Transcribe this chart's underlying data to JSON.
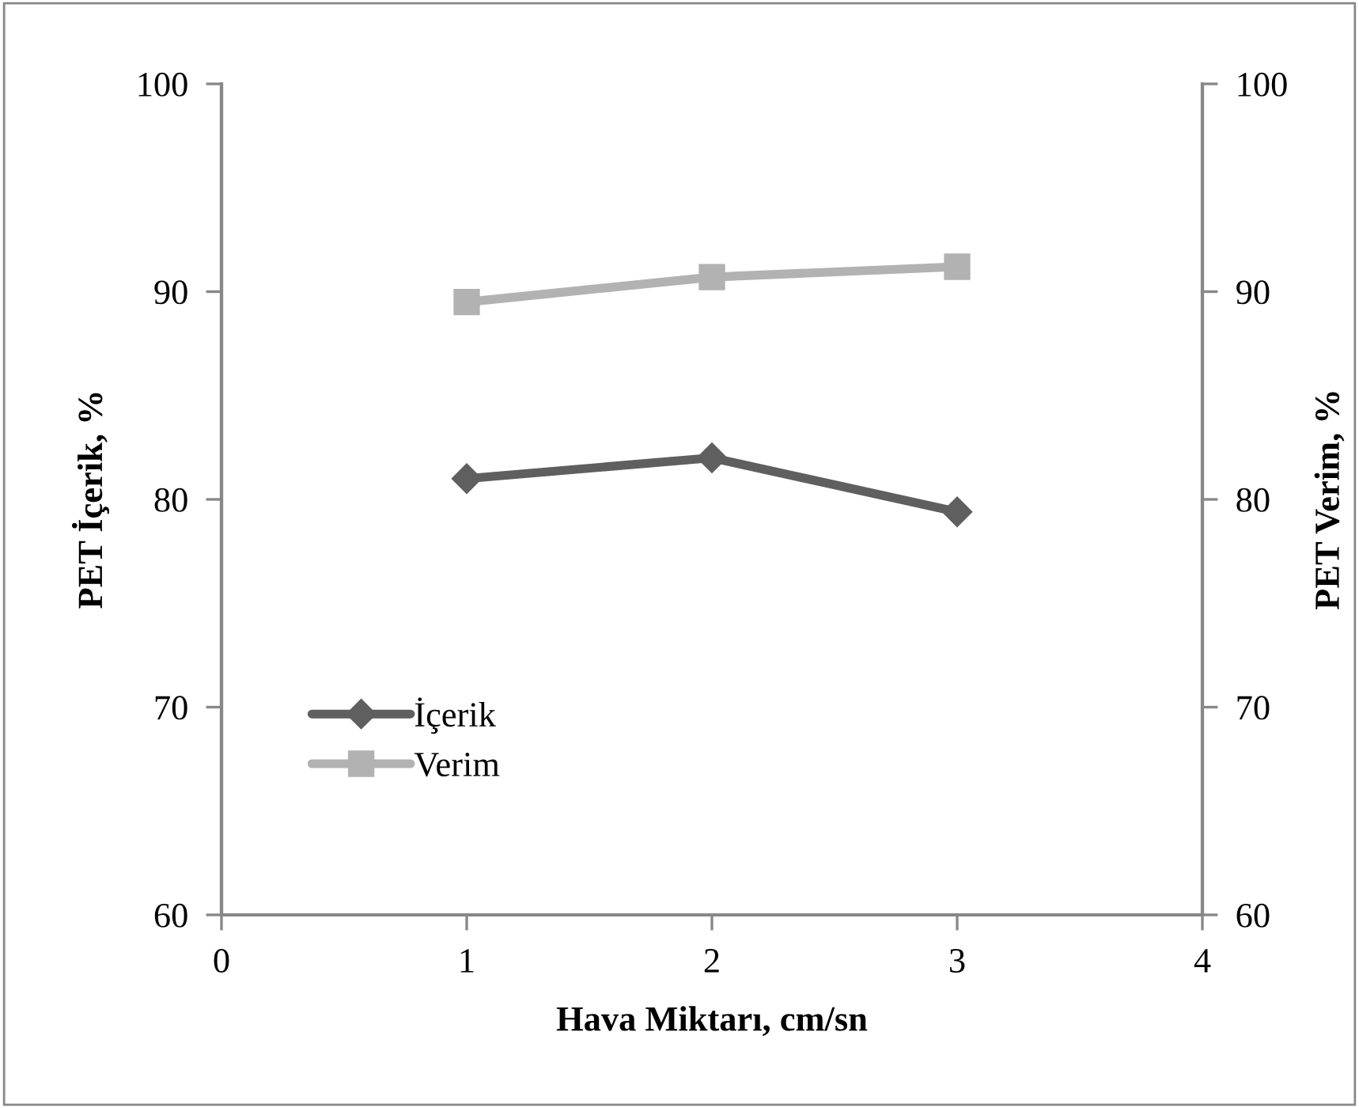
{
  "chart_data": {
    "type": "line",
    "xlabel": "Hava Miktarı, cm/sn",
    "ylabel": "PET İçerik, %",
    "y2label": "PET Verim, %",
    "x": [
      1,
      2,
      3
    ],
    "series": [
      {
        "name": "İçerik",
        "color": "#5f5f5f",
        "marker": "diamond",
        "values": [
          81.0,
          82.0,
          79.4
        ]
      },
      {
        "name": "Verim",
        "color": "#b2b2b2",
        "marker": "square",
        "values": [
          89.5,
          90.7,
          91.2
        ]
      }
    ],
    "xlim": [
      0,
      4
    ],
    "xticks": [
      0,
      1,
      2,
      3,
      4
    ],
    "ylim": [
      60,
      100
    ],
    "yticks": [
      60,
      70,
      80,
      90,
      100
    ],
    "y2lim": [
      60,
      100
    ],
    "y2ticks": [
      60,
      70,
      80,
      90,
      100
    ],
    "grid": false,
    "legend": "bottom left",
    "line_style": "solid"
  }
}
